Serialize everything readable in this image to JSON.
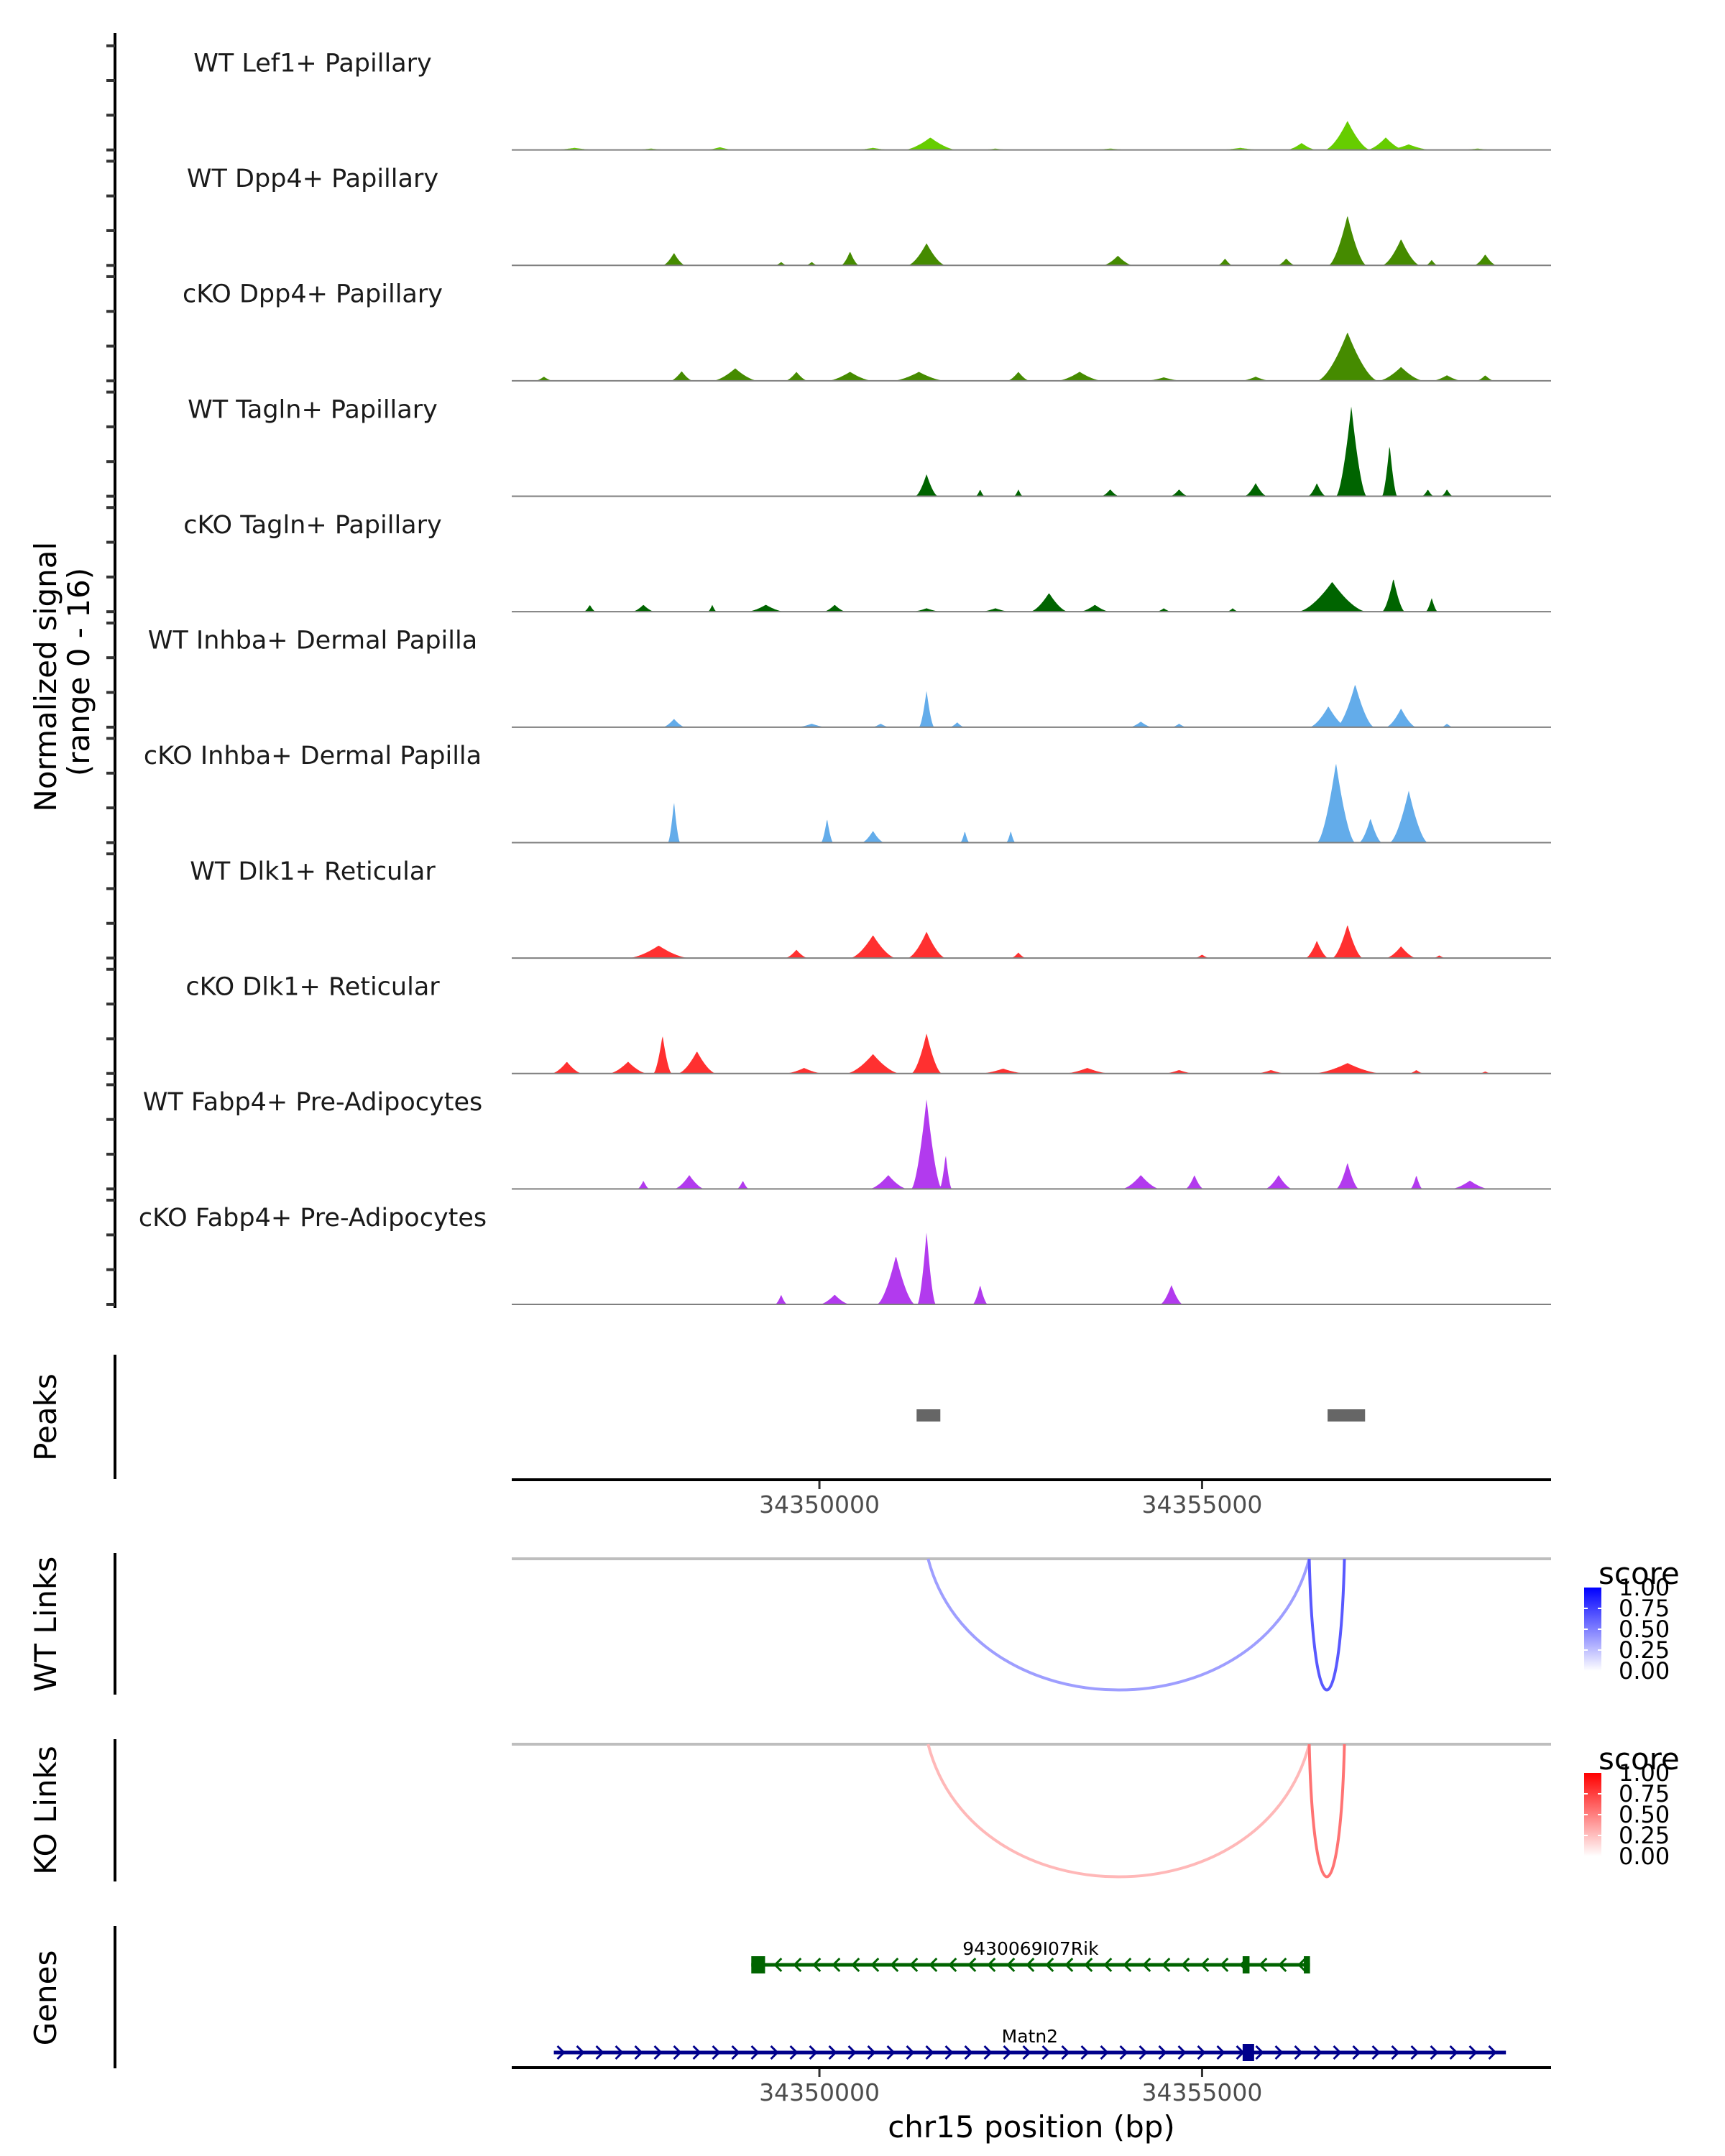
{
  "chart_data": {
    "type": "area",
    "title": "",
    "region": {
      "chrom": "chr15",
      "start": 34345980,
      "end": 34359560
    },
    "coverage": {
      "ylabel": "Normalized signal\n(range 0 - 16)",
      "ylabel_lines": [
        "Normalized signal",
        "(range 0 - 16)"
      ],
      "ylim": [
        0,
        16
      ],
      "tracks": [
        {
          "label": "WT Lef1+ Papillary",
          "color": "#66CD00",
          "peaks": [
            [
              34346800,
              300,
              0.3
            ],
            [
              34347800,
              250,
              0.2
            ],
            [
              34348700,
              200,
              0.4
            ],
            [
              34350700,
              250,
              0.3
            ],
            [
              34351450,
              350,
              1.8
            ],
            [
              34352300,
              200,
              0.2
            ],
            [
              34353800,
              300,
              0.2
            ],
            [
              34355500,
              300,
              0.3
            ],
            [
              34356300,
              200,
              1.0
            ],
            [
              34356900,
              300,
              4.2
            ],
            [
              34357400,
              250,
              1.8
            ],
            [
              34357700,
              300,
              0.8
            ],
            [
              34358600,
              250,
              0.2
            ]
          ]
        },
        {
          "label": "WT Dpp4+ Papillary",
          "color": "#458B00",
          "peaks": [
            [
              34348100,
              150,
              1.8
            ],
            [
              34349500,
              80,
              0.5
            ],
            [
              34349900,
              80,
              0.5
            ],
            [
              34350400,
              120,
              2.0
            ],
            [
              34351400,
              250,
              3.2
            ],
            [
              34353900,
              200,
              1.4
            ],
            [
              34355300,
              100,
              1.0
            ],
            [
              34356100,
              120,
              1.0
            ],
            [
              34356900,
              250,
              7.2
            ],
            [
              34357600,
              250,
              3.8
            ],
            [
              34358000,
              80,
              0.8
            ],
            [
              34358700,
              150,
              1.6
            ]
          ]
        },
        {
          "label": "cKO Dpp4+ Papillary",
          "color": "#458B00",
          "peaks": [
            [
              34346400,
              120,
              0.6
            ],
            [
              34348200,
              150,
              1.4
            ],
            [
              34348900,
              300,
              1.8
            ],
            [
              34349700,
              150,
              1.3
            ],
            [
              34350400,
              300,
              1.3
            ],
            [
              34351300,
              350,
              1.3
            ],
            [
              34352600,
              150,
              1.3
            ],
            [
              34353400,
              300,
              1.3
            ],
            [
              34354500,
              250,
              0.5
            ],
            [
              34355700,
              200,
              0.6
            ],
            [
              34356900,
              400,
              7.0
            ],
            [
              34357600,
              300,
              2.0
            ],
            [
              34358200,
              200,
              0.8
            ],
            [
              34358700,
              120,
              0.8
            ]
          ]
        },
        {
          "label": "WT Tagln+ Papillary",
          "color": "#006400",
          "peaks": [
            [
              34351400,
              150,
              3.2
            ],
            [
              34352100,
              60,
              1.0
            ],
            [
              34352600,
              60,
              1.0
            ],
            [
              34353800,
              120,
              1.0
            ],
            [
              34354700,
              120,
              1.0
            ],
            [
              34355700,
              150,
              1.9
            ],
            [
              34356500,
              120,
              1.9
            ],
            [
              34356950,
              200,
              13.0
            ],
            [
              34357450,
              100,
              7.5
            ],
            [
              34357950,
              80,
              1.0
            ],
            [
              34358200,
              80,
              1.0
            ]
          ]
        },
        {
          "label": "cKO Tagln+ Papillary",
          "color": "#006400",
          "peaks": [
            [
              34347000,
              80,
              1.0
            ],
            [
              34347700,
              150,
              1.0
            ],
            [
              34348600,
              60,
              1.0
            ],
            [
              34349300,
              250,
              1.0
            ],
            [
              34350200,
              150,
              1.0
            ],
            [
              34351400,
              200,
              0.5
            ],
            [
              34352300,
              200,
              0.5
            ],
            [
              34353000,
              250,
              2.7
            ],
            [
              34353600,
              200,
              1.0
            ],
            [
              34354500,
              100,
              0.5
            ],
            [
              34355400,
              80,
              0.5
            ],
            [
              34356700,
              450,
              4.3
            ],
            [
              34357500,
              150,
              4.8
            ],
            [
              34358000,
              80,
              2.0
            ]
          ]
        },
        {
          "label": "WT Inhba+ Dermal Papilla",
          "color": "#63ACEA",
          "peaks": [
            [
              34348100,
              150,
              1.2
            ],
            [
              34349900,
              200,
              0.5
            ],
            [
              34350800,
              120,
              0.5
            ],
            [
              34351400,
              100,
              5.3
            ],
            [
              34351800,
              100,
              0.7
            ],
            [
              34354200,
              150,
              0.8
            ],
            [
              34354700,
              100,
              0.5
            ],
            [
              34356650,
              250,
              3.0
            ],
            [
              34357000,
              250,
              6.2
            ],
            [
              34357600,
              200,
              2.7
            ],
            [
              34358200,
              80,
              0.5
            ]
          ]
        },
        {
          "label": "cKO Inhba+ Dermal Papilla",
          "color": "#63ACEA",
          "peaks": [
            [
              34348100,
              80,
              6.0
            ],
            [
              34350100,
              80,
              3.5
            ],
            [
              34350700,
              150,
              1.7
            ],
            [
              34351900,
              60,
              1.7
            ],
            [
              34352500,
              60,
              1.7
            ],
            [
              34356750,
              250,
              11.5
            ],
            [
              34357200,
              150,
              3.5
            ],
            [
              34357700,
              250,
              7.5
            ]
          ]
        },
        {
          "label": "WT Dlk1+ Reticular",
          "color": "#FF3030",
          "peaks": [
            [
              34347900,
              400,
              1.8
            ],
            [
              34349700,
              150,
              1.2
            ],
            [
              34350700,
              300,
              3.3
            ],
            [
              34351400,
              250,
              3.8
            ],
            [
              34352600,
              100,
              0.8
            ],
            [
              34355000,
              100,
              0.5
            ],
            [
              34356500,
              150,
              2.5
            ],
            [
              34356900,
              200,
              4.8
            ],
            [
              34357600,
              200,
              1.7
            ],
            [
              34358100,
              80,
              0.4
            ]
          ]
        },
        {
          "label": "cKO Dlk1+ Reticular",
          "color": "#FF3030",
          "peaks": [
            [
              34346700,
              200,
              1.7
            ],
            [
              34347500,
              250,
              1.7
            ],
            [
              34347950,
              120,
              5.5
            ],
            [
              34348400,
              250,
              3.2
            ],
            [
              34349800,
              250,
              0.8
            ],
            [
              34350700,
              350,
              2.8
            ],
            [
              34351400,
              200,
              5.8
            ],
            [
              34352400,
              300,
              0.7
            ],
            [
              34353500,
              300,
              0.8
            ],
            [
              34354700,
              200,
              0.5
            ],
            [
              34355900,
              200,
              0.5
            ],
            [
              34356900,
              450,
              1.5
            ],
            [
              34357800,
              100,
              0.5
            ],
            [
              34358700,
              80,
              0.3
            ]
          ]
        },
        {
          "label": "WT Fabp4+ Pre-Adipocytes",
          "color": "#B23AEE",
          "peaks": [
            [
              34347700,
              80,
              1.2
            ],
            [
              34348300,
              200,
              2.0
            ],
            [
              34349000,
              80,
              1.2
            ],
            [
              34350900,
              250,
              2.0
            ],
            [
              34351400,
              200,
              13.0
            ],
            [
              34351650,
              80,
              5.0
            ],
            [
              34354200,
              250,
              2.0
            ],
            [
              34354900,
              120,
              2.0
            ],
            [
              34356000,
              180,
              2.0
            ],
            [
              34356900,
              150,
              3.8
            ],
            [
              34357800,
              80,
              2.0
            ],
            [
              34358500,
              250,
              1.2
            ]
          ]
        },
        {
          "label": "cKO Fabp4+ Pre-Adipocytes",
          "color": "#B23AEE",
          "peaks": [
            [
              34349500,
              80,
              1.4
            ],
            [
              34350200,
              200,
              1.4
            ],
            [
              34351000,
              250,
              7.0
            ],
            [
              34351400,
              120,
              10.5
            ],
            [
              34352100,
              100,
              2.8
            ],
            [
              34354600,
              150,
              2.8
            ]
          ]
        }
      ]
    },
    "peaks_track": {
      "label": "Peaks",
      "color": "#666666",
      "ranges": [
        [
          34351270,
          34351580
        ],
        [
          34356640,
          34357130
        ]
      ]
    },
    "x_axis": {
      "ticks": [
        34350000,
        34355000
      ],
      "tick_labels": [
        "34350000",
        "34355000"
      ],
      "xlabel": "chr15 position (bp)"
    },
    "links": [
      {
        "label": "WT Links",
        "palette": [
          "#FFFFFF",
          "#0000FF"
        ],
        "arcs": [
          {
            "start": 34351420,
            "end": 34356400,
            "score": 0.38
          },
          {
            "start": 34356400,
            "end": 34356860,
            "score": 0.65
          }
        ],
        "legend": {
          "title": "score",
          "ticks": [
            "1.00",
            "0.75",
            "0.50",
            "0.25",
            "0.00"
          ]
        }
      },
      {
        "label": "KO Links",
        "palette": [
          "#FFFFFF",
          "#FF0000"
        ],
        "arcs": [
          {
            "start": 34351420,
            "end": 34356400,
            "score": 0.28
          },
          {
            "start": 34356400,
            "end": 34356860,
            "score": 0.55
          }
        ],
        "legend": {
          "title": "score",
          "ticks": [
            "1.00",
            "0.75",
            "0.50",
            "0.25",
            "0.00"
          ]
        }
      }
    ],
    "genes": {
      "label": "Genes",
      "items": [
        {
          "name": "9430069I07Rik",
          "strand": "-",
          "start": 34349110,
          "end": 34356410,
          "color": "#006400",
          "exons": [
            [
              34349110,
              34349290
            ],
            [
              34355530,
              34355620
            ],
            [
              34356330,
              34356410
            ]
          ]
        },
        {
          "name": "Matn2",
          "strand": "+",
          "start": 34346530,
          "end": 34358970,
          "color": "#00008B",
          "exons": [
            [
              34355530,
              34355680
            ]
          ]
        }
      ]
    }
  }
}
